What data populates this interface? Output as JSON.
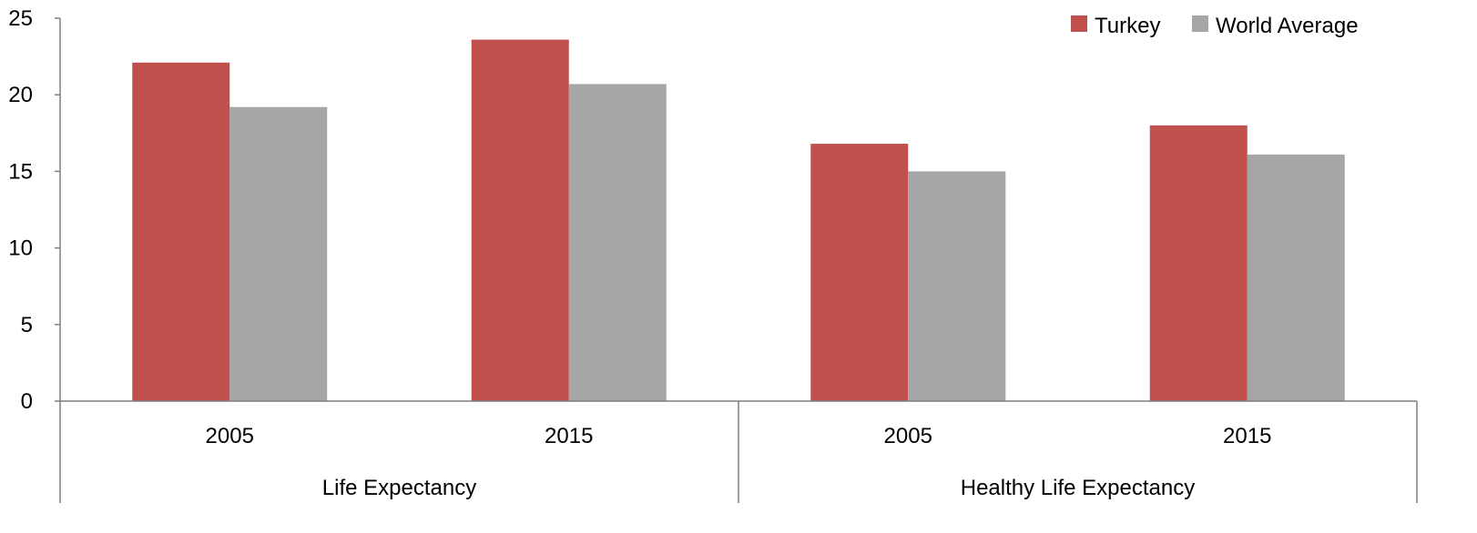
{
  "chart_data": {
    "type": "bar",
    "title": "",
    "xlabel": "",
    "ylabel": "",
    "ylim": [
      0,
      25
    ],
    "yticks": [
      0,
      5,
      10,
      15,
      20,
      25
    ],
    "grid": false,
    "legend_position": "top-right",
    "groups": [
      {
        "label": "Life Expectancy",
        "categories": [
          "2005",
          "2015"
        ]
      },
      {
        "label": "Healthy Life Expectancy",
        "categories": [
          "2005",
          "2015"
        ]
      }
    ],
    "categories": [
      "2005",
      "2015",
      "2005",
      "2015"
    ],
    "series": [
      {
        "name": "Turkey",
        "color": "#C0504D",
        "values": [
          22.1,
          23.6,
          16.8,
          18.0
        ]
      },
      {
        "name": "World Average",
        "color": "#A6A6A6",
        "values": [
          19.2,
          20.7,
          15.0,
          16.1
        ]
      }
    ]
  }
}
